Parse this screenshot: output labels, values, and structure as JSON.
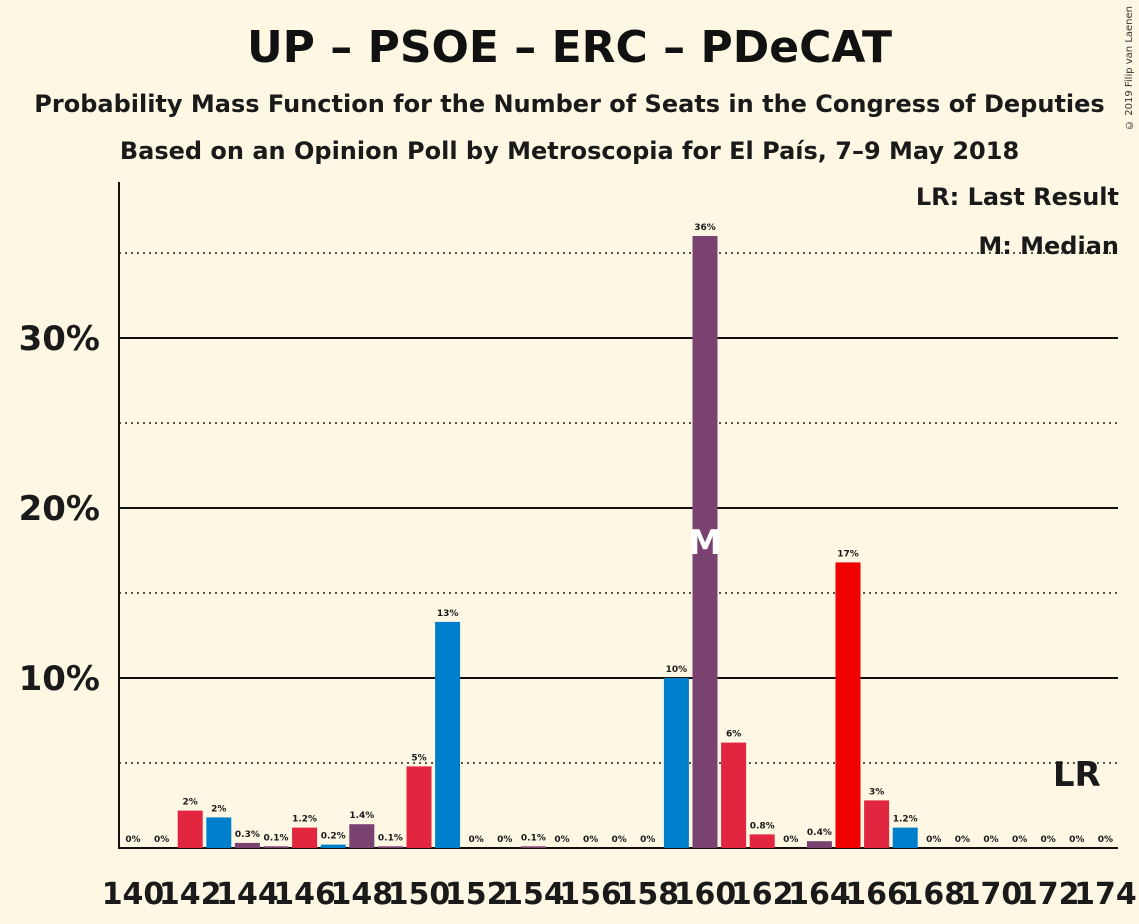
{
  "chart_data": {
    "type": "bar",
    "title": "UP – PSOE – ERC – PDeCAT",
    "subtitle": "Probability Mass Function for the Number of Seats in the Congress of Deputies",
    "subtitle2": "Based on an Opinion Poll by Metroscopia for El País, 7–9 May 2018",
    "copyright": "© 2019 Filip van Laenen",
    "legend": {
      "last_result": "LR: Last Result",
      "median": "M: Median"
    },
    "y_ticks": [
      {
        "value": 10,
        "label": "10%"
      },
      {
        "value": 20,
        "label": "20%"
      },
      {
        "value": 30,
        "label": "30%"
      }
    ],
    "ylim": [
      0,
      40
    ],
    "x_ticks": [
      "140",
      "142",
      "144",
      "146",
      "148",
      "150",
      "152",
      "154",
      "156",
      "158",
      "160",
      "162",
      "164",
      "166",
      "168",
      "170",
      "172",
      "174"
    ],
    "median_seat": 160,
    "median_label": "M",
    "last_result_seat": 173,
    "last_result_label": "LR",
    "colors": {
      "red": "#e3263f",
      "blue": "#0080cc",
      "purple": "#7a4270",
      "bright_red": "#f00000"
    },
    "bars": [
      {
        "seat": 140,
        "value": 0,
        "label": "0%",
        "color": "red"
      },
      {
        "seat": 141,
        "value": 0,
        "label": "0%",
        "color": "red"
      },
      {
        "seat": 142,
        "value": 2.2,
        "label": "2%",
        "color": "red"
      },
      {
        "seat": 143,
        "value": 1.8,
        "label": "2%",
        "color": "blue"
      },
      {
        "seat": 144,
        "value": 0.3,
        "label": "0.3%",
        "color": "purple"
      },
      {
        "seat": 145,
        "value": 0.1,
        "label": "0.1%",
        "color": "purple"
      },
      {
        "seat": 146,
        "value": 1.2,
        "label": "1.2%",
        "color": "red"
      },
      {
        "seat": 147,
        "value": 0.2,
        "label": "0.2%",
        "color": "blue"
      },
      {
        "seat": 148,
        "value": 1.4,
        "label": "1.4%",
        "color": "purple"
      },
      {
        "seat": 149,
        "value": 0.1,
        "label": "0.1%",
        "color": "purple"
      },
      {
        "seat": 150,
        "value": 4.8,
        "label": "5%",
        "color": "red"
      },
      {
        "seat": 151,
        "value": 13.3,
        "label": "13%",
        "color": "blue"
      },
      {
        "seat": 152,
        "value": 0,
        "label": "0%",
        "color": "purple"
      },
      {
        "seat": 153,
        "value": 0,
        "label": "0%",
        "color": "purple"
      },
      {
        "seat": 154,
        "value": 0.1,
        "label": "0.1%",
        "color": "purple"
      },
      {
        "seat": 155,
        "value": 0,
        "label": "0%",
        "color": "purple"
      },
      {
        "seat": 156,
        "value": 0,
        "label": "0%",
        "color": "purple"
      },
      {
        "seat": 157,
        "value": 0,
        "label": "0%",
        "color": "purple"
      },
      {
        "seat": 158,
        "value": 0,
        "label": "0%",
        "color": "purple"
      },
      {
        "seat": 159,
        "value": 10,
        "label": "10%",
        "color": "blue"
      },
      {
        "seat": 160,
        "value": 36,
        "label": "36%",
        "color": "purple"
      },
      {
        "seat": 161,
        "value": 6.2,
        "label": "6%",
        "color": "red"
      },
      {
        "seat": 162,
        "value": 0.8,
        "label": "0.8%",
        "color": "red"
      },
      {
        "seat": 163,
        "value": 0,
        "label": "0%",
        "color": "red"
      },
      {
        "seat": 164,
        "value": 0.4,
        "label": "0.4%",
        "color": "purple"
      },
      {
        "seat": 165,
        "value": 16.8,
        "label": "17%",
        "color": "bright_red"
      },
      {
        "seat": 166,
        "value": 2.8,
        "label": "3%",
        "color": "red"
      },
      {
        "seat": 167,
        "value": 1.2,
        "label": "1.2%",
        "color": "blue"
      },
      {
        "seat": 168,
        "value": 0,
        "label": "0%",
        "color": "blue"
      },
      {
        "seat": 169,
        "value": 0,
        "label": "0%",
        "color": "blue"
      },
      {
        "seat": 170,
        "value": 0,
        "label": "0%",
        "color": "blue"
      },
      {
        "seat": 171,
        "value": 0,
        "label": "0%",
        "color": "blue"
      },
      {
        "seat": 172,
        "value": 0,
        "label": "0%",
        "color": "blue"
      },
      {
        "seat": 173,
        "value": 0,
        "label": "0%",
        "color": "blue"
      },
      {
        "seat": 174,
        "value": 0,
        "label": "0%",
        "color": "blue"
      }
    ]
  }
}
